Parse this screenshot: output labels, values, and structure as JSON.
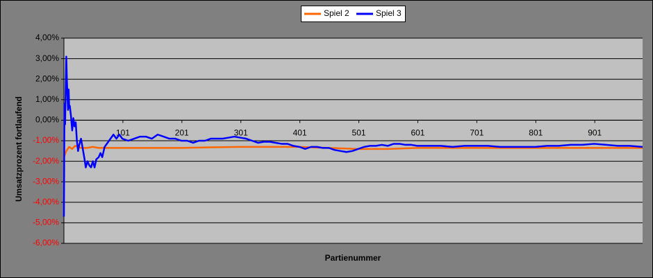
{
  "chart_data": {
    "type": "line",
    "y_axis_label": "Umsatzprozent fortlaufend",
    "x_axis_label": "Partienummer",
    "xlim": [
      1,
      982
    ],
    "xticks": [
      101,
      201,
      301,
      401,
      501,
      601,
      701,
      801,
      901
    ],
    "ylim": [
      -6,
      4
    ],
    "yticks": [
      {
        "value": 4,
        "label": "4,00%"
      },
      {
        "value": 3,
        "label": "3,00%"
      },
      {
        "value": 2,
        "label": "2,00%"
      },
      {
        "value": 1,
        "label": "1,00%"
      },
      {
        "value": 0,
        "label": "0,00%"
      },
      {
        "value": -1,
        "label": "-1,00%"
      },
      {
        "value": -2,
        "label": "-2,00%"
      },
      {
        "value": -3,
        "label": "-3,00%"
      },
      {
        "value": -4,
        "label": "-4,00%"
      },
      {
        "value": -5,
        "label": "-5,00%"
      },
      {
        "value": -6,
        "label": "-6,00%"
      }
    ],
    "grid": true,
    "negative_label_color": "#ff0000",
    "legend_position": "top",
    "series": [
      {
        "name": "Spiel 2",
        "color": "#ff6600",
        "x": [
          1,
          5,
          10,
          15,
          20,
          30,
          40,
          50,
          60,
          80,
          100,
          150,
          200,
          250,
          300,
          350,
          400,
          450,
          500,
          550,
          600,
          700,
          800,
          900,
          982
        ],
        "values": [
          -1.8,
          -1.5,
          -1.3,
          -1.4,
          -1.25,
          -1.35,
          -1.35,
          -1.3,
          -1.35,
          -1.35,
          -1.35,
          -1.35,
          -1.35,
          -1.32,
          -1.3,
          -1.3,
          -1.3,
          -1.35,
          -1.4,
          -1.4,
          -1.35,
          -1.35,
          -1.35,
          -1.35,
          -1.35
        ]
      },
      {
        "name": "Spiel 3",
        "color": "#0000ff",
        "x": [
          1,
          2,
          3,
          4,
          5,
          6,
          7,
          8,
          9,
          10,
          11,
          13,
          15,
          17,
          19,
          21,
          23,
          25,
          27,
          30,
          33,
          36,
          38,
          41,
          44,
          47,
          50,
          53,
          56,
          60,
          63,
          66,
          70,
          75,
          80,
          85,
          90,
          95,
          100,
          110,
          120,
          130,
          140,
          150,
          160,
          170,
          180,
          190,
          200,
          210,
          220,
          230,
          240,
          250,
          260,
          270,
          280,
          290,
          300,
          310,
          320,
          330,
          340,
          350,
          360,
          370,
          380,
          390,
          400,
          410,
          420,
          430,
          440,
          450,
          460,
          470,
          480,
          490,
          500,
          510,
          520,
          530,
          540,
          550,
          560,
          570,
          580,
          590,
          600,
          620,
          640,
          660,
          680,
          700,
          720,
          740,
          760,
          780,
          800,
          820,
          840,
          860,
          880,
          900,
          920,
          940,
          960,
          982
        ],
        "values": [
          -4.7,
          0.8,
          -0.2,
          1.5,
          3.1,
          2.0,
          1.2,
          0.5,
          1.5,
          0.6,
          0.7,
          0.2,
          -0.5,
          0.1,
          -0.3,
          -0.1,
          -1.0,
          -1.5,
          -1.2,
          -0.9,
          -1.4,
          -1.9,
          -2.3,
          -2.0,
          -2.2,
          -2.3,
          -2.0,
          -2.3,
          -1.9,
          -1.8,
          -1.6,
          -1.8,
          -1.3,
          -1.1,
          -0.9,
          -0.7,
          -0.9,
          -0.7,
          -0.9,
          -1.0,
          -0.9,
          -0.8,
          -0.8,
          -0.9,
          -0.7,
          -0.8,
          -0.9,
          -0.9,
          -1.0,
          -1.0,
          -1.1,
          -1.0,
          -1.0,
          -0.9,
          -0.9,
          -0.9,
          -0.85,
          -0.8,
          -0.85,
          -0.9,
          -1.0,
          -1.1,
          -1.05,
          -1.05,
          -1.1,
          -1.15,
          -1.15,
          -1.25,
          -1.3,
          -1.4,
          -1.3,
          -1.3,
          -1.35,
          -1.35,
          -1.45,
          -1.5,
          -1.55,
          -1.5,
          -1.4,
          -1.3,
          -1.25,
          -1.25,
          -1.2,
          -1.25,
          -1.15,
          -1.15,
          -1.2,
          -1.2,
          -1.25,
          -1.25,
          -1.25,
          -1.3,
          -1.25,
          -1.25,
          -1.25,
          -1.3,
          -1.3,
          -1.3,
          -1.3,
          -1.25,
          -1.25,
          -1.2,
          -1.2,
          -1.15,
          -1.2,
          -1.25,
          -1.25,
          -1.3
        ]
      }
    ]
  }
}
